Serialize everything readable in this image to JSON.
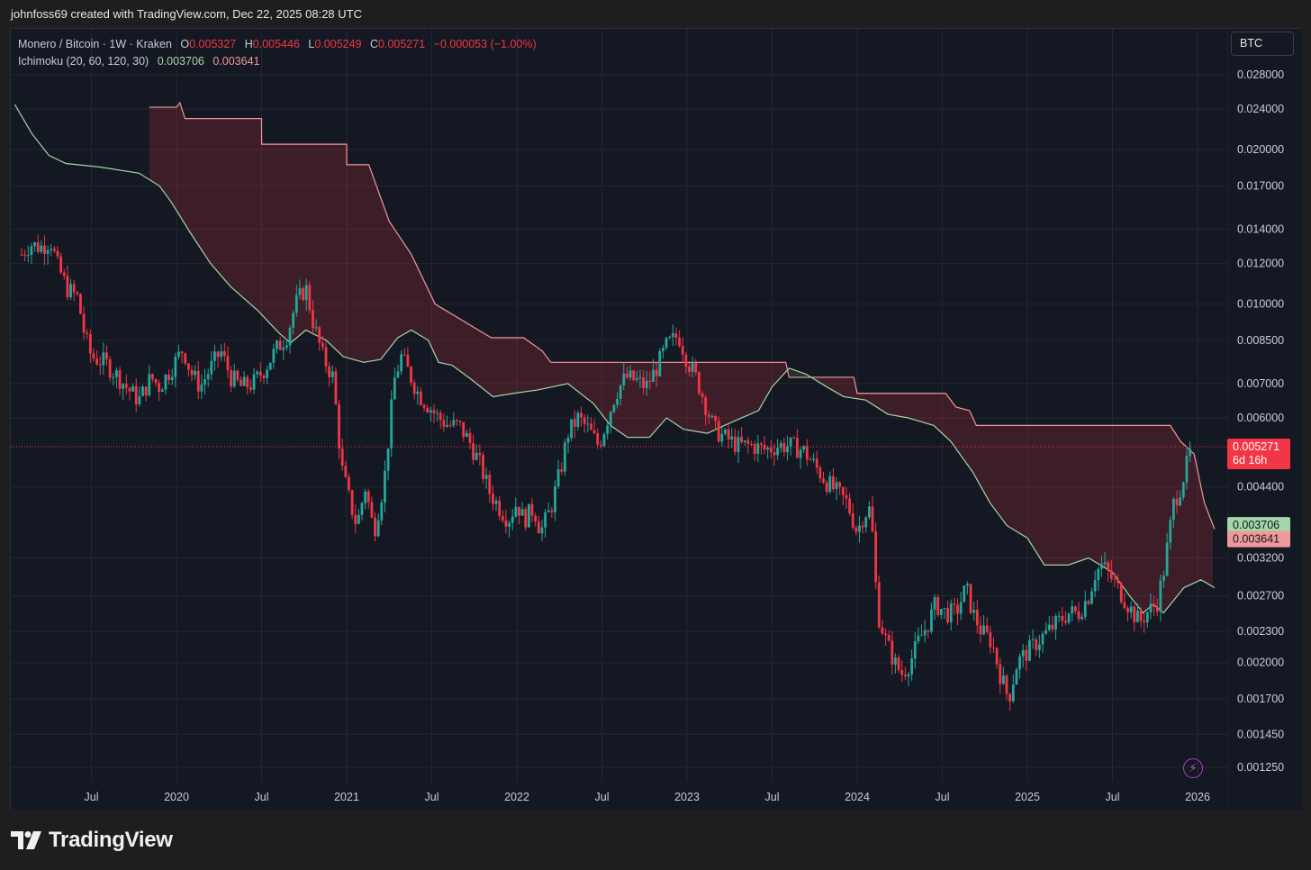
{
  "header": {
    "caption": "johnfoss69 created with TradingView.com, Dec 22, 2025 08:28 UTC"
  },
  "legend": {
    "symbol": "Monero / Bitcoin · 1W · Kraken",
    "o_label": "O",
    "o_value": "0.005327",
    "h_label": "H",
    "h_value": "0.005446",
    "l_label": "L",
    "l_value": "0.005249",
    "c_label": "C",
    "c_value": "0.005271",
    "change": "−0.000053 (−1.00%)",
    "indicator": "Ichimoku (20, 60, 120, 30)",
    "ind_value1": "0.003706",
    "ind_value2": "0.003641"
  },
  "toolbar": {
    "currency_label": "BTC"
  },
  "footer": {
    "brand": "TradingView"
  },
  "colors": {
    "up": "#26a69a",
    "down": "#f23645",
    "span_a": "#a5d6a7",
    "span_b": "#ef9a9a",
    "cloud_bear": "#f23645",
    "cloud_bull": "#4caf50",
    "background": "#141823",
    "grid": "#232733",
    "text": "#c9ccd3"
  },
  "chart_data": {
    "type": "candlestick",
    "interval": "1W",
    "price_scale": "log",
    "y_ticks": [
      "0.028000",
      "0.024000",
      "0.020000",
      "0.017000",
      "0.014000",
      "0.012000",
      "0.010000",
      "0.008500",
      "0.007000",
      "0.006000",
      "0.004400",
      "0.003200",
      "0.002700",
      "0.002300",
      "0.002000",
      "0.001700",
      "0.001450",
      "0.001250"
    ],
    "x_ticks": [
      {
        "label": "Jul",
        "t": 2019.5
      },
      {
        "label": "2020",
        "t": 2020.0
      },
      {
        "label": "Jul",
        "t": 2020.5
      },
      {
        "label": "2021",
        "t": 2021.0
      },
      {
        "label": "Jul",
        "t": 2021.5
      },
      {
        "label": "2022",
        "t": 2022.0
      },
      {
        "label": "Jul",
        "t": 2022.5
      },
      {
        "label": "2023",
        "t": 2023.0
      },
      {
        "label": "Jul",
        "t": 2023.5
      },
      {
        "label": "2024",
        "t": 2024.0
      },
      {
        "label": "Jul",
        "t": 2024.5
      },
      {
        "label": "2025",
        "t": 2025.0
      },
      {
        "label": "Jul",
        "t": 2025.5
      },
      {
        "label": "2026",
        "t": 2026.0
      }
    ],
    "last_price": {
      "value": 0.005271,
      "label": "0.005271",
      "countdown": "6d 16h"
    },
    "ichimoku_labels": [
      {
        "label": "0.003706",
        "value": 0.003706
      },
      {
        "label": "0.003641",
        "value": 0.003641
      }
    ],
    "price_path": [
      [
        2019.09,
        0.0125
      ],
      [
        2019.14,
        0.0131
      ],
      [
        2019.2,
        0.0129
      ],
      [
        2019.26,
        0.0133
      ],
      [
        2019.3,
        0.0119
      ],
      [
        2019.36,
        0.0107
      ],
      [
        2019.42,
        0.0103
      ],
      [
        2019.46,
        0.0087
      ],
      [
        2019.5,
        0.0079
      ],
      [
        2019.58,
        0.0077
      ],
      [
        2019.66,
        0.0072
      ],
      [
        2019.72,
        0.0068
      ],
      [
        2019.78,
        0.0065
      ],
      [
        2019.85,
        0.0072
      ],
      [
        2019.9,
        0.0069
      ],
      [
        2019.97,
        0.0075
      ],
      [
        2020.04,
        0.0082
      ],
      [
        2020.08,
        0.0074
      ],
      [
        2020.14,
        0.0069
      ],
      [
        2020.2,
        0.0075
      ],
      [
        2020.26,
        0.0081
      ],
      [
        2020.32,
        0.0072
      ],
      [
        2020.38,
        0.0069
      ],
      [
        2020.45,
        0.007
      ],
      [
        2020.52,
        0.0075
      ],
      [
        2020.58,
        0.0081
      ],
      [
        2020.65,
        0.0087
      ],
      [
        2020.7,
        0.01
      ],
      [
        2020.76,
        0.0108
      ],
      [
        2020.8,
        0.0093
      ],
      [
        2020.86,
        0.0079
      ],
      [
        2020.92,
        0.0072
      ],
      [
        2020.97,
        0.0048
      ],
      [
        2021.02,
        0.0041
      ],
      [
        2021.06,
        0.0037
      ],
      [
        2021.11,
        0.0044
      ],
      [
        2021.16,
        0.0036
      ],
      [
        2021.22,
        0.0045
      ],
      [
        2021.28,
        0.0071
      ],
      [
        2021.32,
        0.0079
      ],
      [
        2021.37,
        0.0073
      ],
      [
        2021.42,
        0.0067
      ],
      [
        2021.47,
        0.0064
      ],
      [
        2021.54,
        0.006
      ],
      [
        2021.6,
        0.0058
      ],
      [
        2021.66,
        0.0058
      ],
      [
        2021.72,
        0.0054
      ],
      [
        2021.78,
        0.0049
      ],
      [
        2021.84,
        0.0043
      ],
      [
        2021.9,
        0.004
      ],
      [
        2021.95,
        0.0038
      ],
      [
        2022.0,
        0.0041
      ],
      [
        2022.04,
        0.0038
      ],
      [
        2022.1,
        0.004
      ],
      [
        2022.14,
        0.0036
      ],
      [
        2022.2,
        0.004
      ],
      [
        2022.26,
        0.0048
      ],
      [
        2022.3,
        0.0056
      ],
      [
        2022.36,
        0.006
      ],
      [
        2022.42,
        0.0057
      ],
      [
        2022.48,
        0.0053
      ],
      [
        2022.52,
        0.0058
      ],
      [
        2022.58,
        0.0067
      ],
      [
        2022.64,
        0.0072
      ],
      [
        2022.7,
        0.0071
      ],
      [
        2022.76,
        0.0069
      ],
      [
        2022.82,
        0.0075
      ],
      [
        2022.88,
        0.0083
      ],
      [
        2022.95,
        0.0087
      ],
      [
        2023.0,
        0.0078
      ],
      [
        2023.06,
        0.0071
      ],
      [
        2023.1,
        0.0065
      ],
      [
        2023.16,
        0.0057
      ],
      [
        2023.22,
        0.0055
      ],
      [
        2023.3,
        0.0053
      ],
      [
        2023.38,
        0.0053
      ],
      [
        2023.46,
        0.0052
      ],
      [
        2023.54,
        0.0053
      ],
      [
        2023.6,
        0.0053
      ],
      [
        2023.68,
        0.0052
      ],
      [
        2023.74,
        0.0049
      ],
      [
        2023.82,
        0.0045
      ],
      [
        2023.88,
        0.0043
      ],
      [
        2023.94,
        0.0041
      ],
      [
        2024.0,
        0.0036
      ],
      [
        2024.04,
        0.0039
      ],
      [
        2024.08,
        0.004
      ],
      [
        2024.12,
        0.0025
      ],
      [
        2024.17,
        0.0022
      ],
      [
        2024.22,
        0.002
      ],
      [
        2024.26,
        0.0019
      ],
      [
        2024.31,
        0.002
      ],
      [
        2024.36,
        0.0022
      ],
      [
        2024.42,
        0.0024
      ],
      [
        2024.46,
        0.0026
      ],
      [
        2024.52,
        0.0025
      ],
      [
        2024.58,
        0.0025
      ],
      [
        2024.64,
        0.0028
      ],
      [
        2024.68,
        0.0025
      ],
      [
        2024.73,
        0.0023
      ],
      [
        2024.79,
        0.0022
      ],
      [
        2024.84,
        0.0019
      ],
      [
        2024.89,
        0.0017
      ],
      [
        2024.94,
        0.002
      ],
      [
        2025.0,
        0.0021
      ],
      [
        2025.06,
        0.0022
      ],
      [
        2025.12,
        0.0023
      ],
      [
        2025.18,
        0.0024
      ],
      [
        2025.24,
        0.0025
      ],
      [
        2025.3,
        0.0025
      ],
      [
        2025.36,
        0.0027
      ],
      [
        2025.4,
        0.003
      ],
      [
        2025.44,
        0.0031
      ],
      [
        2025.5,
        0.0029
      ],
      [
        2025.56,
        0.0027
      ],
      [
        2025.62,
        0.0025
      ],
      [
        2025.66,
        0.0024
      ],
      [
        2025.7,
        0.0025
      ],
      [
        2025.76,
        0.0026
      ],
      [
        2025.8,
        0.003
      ],
      [
        2025.86,
        0.0041
      ],
      [
        2025.9,
        0.0044
      ],
      [
        2025.94,
        0.0049
      ],
      [
        2025.97,
        0.00533
      ]
    ],
    "span_a_path": [
      [
        2019.05,
        0.0245
      ],
      [
        2019.15,
        0.0215
      ],
      [
        2019.25,
        0.0195
      ],
      [
        2019.35,
        0.0188
      ],
      [
        2019.55,
        0.0185
      ],
      [
        2019.78,
        0.018
      ],
      [
        2019.9,
        0.017
      ],
      [
        2019.97,
        0.0158
      ],
      [
        2020.08,
        0.0138
      ],
      [
        2020.2,
        0.012
      ],
      [
        2020.32,
        0.0108
      ],
      [
        2020.48,
        0.0097
      ],
      [
        2020.6,
        0.0088
      ],
      [
        2020.67,
        0.0084
      ],
      [
        2020.76,
        0.0089
      ],
      [
        2020.88,
        0.0085
      ],
      [
        2020.98,
        0.0079
      ],
      [
        2021.1,
        0.0077
      ],
      [
        2021.2,
        0.0078
      ],
      [
        2021.3,
        0.0086
      ],
      [
        2021.38,
        0.0089
      ],
      [
        2021.48,
        0.0085
      ],
      [
        2021.54,
        0.0077
      ],
      [
        2021.62,
        0.0076
      ],
      [
        2021.74,
        0.0071
      ],
      [
        2021.86,
        0.0066
      ],
      [
        2021.98,
        0.0067
      ],
      [
        2022.12,
        0.0068
      ],
      [
        2022.3,
        0.007
      ],
      [
        2022.45,
        0.0064
      ],
      [
        2022.55,
        0.0058
      ],
      [
        2022.65,
        0.0055
      ],
      [
        2022.78,
        0.0055
      ],
      [
        2022.88,
        0.006
      ],
      [
        2022.98,
        0.0057
      ],
      [
        2023.12,
        0.0056
      ],
      [
        2023.22,
        0.0058
      ],
      [
        2023.32,
        0.006
      ],
      [
        2023.42,
        0.0062
      ],
      [
        2023.5,
        0.0069
      ],
      [
        2023.6,
        0.0075
      ],
      [
        2023.7,
        0.0073
      ],
      [
        2023.82,
        0.0069
      ],
      [
        2023.92,
        0.0066
      ],
      [
        2024.05,
        0.0065
      ],
      [
        2024.18,
        0.0061
      ],
      [
        2024.3,
        0.006
      ],
      [
        2024.45,
        0.0058
      ],
      [
        2024.55,
        0.0054
      ],
      [
        2024.68,
        0.0047
      ],
      [
        2024.78,
        0.0041
      ],
      [
        2024.88,
        0.0037
      ],
      [
        2025.0,
        0.0035
      ],
      [
        2025.1,
        0.0031
      ],
      [
        2025.24,
        0.0031
      ],
      [
        2025.36,
        0.0032
      ],
      [
        2025.5,
        0.003
      ],
      [
        2025.6,
        0.0027
      ],
      [
        2025.68,
        0.0025
      ],
      [
        2025.74,
        0.0026
      ],
      [
        2025.8,
        0.0025
      ],
      [
        2025.92,
        0.0028
      ],
      [
        2026.02,
        0.0029
      ],
      [
        2026.1,
        0.0028
      ]
    ],
    "span_b_path": [
      [
        2019.84,
        0.0242
      ],
      [
        2020.0,
        0.0242
      ],
      [
        2020.02,
        0.0247
      ],
      [
        2020.05,
        0.023
      ],
      [
        2020.5,
        0.023
      ],
      [
        2020.5,
        0.0205
      ],
      [
        2021.0,
        0.0205
      ],
      [
        2021.0,
        0.0187
      ],
      [
        2021.13,
        0.0187
      ],
      [
        2021.25,
        0.0145
      ],
      [
        2021.38,
        0.0125
      ],
      [
        2021.52,
        0.01
      ],
      [
        2021.75,
        0.009
      ],
      [
        2021.85,
        0.0086
      ],
      [
        2022.04,
        0.0086
      ],
      [
        2022.15,
        0.0081
      ],
      [
        2022.2,
        0.0077
      ],
      [
        2023.5,
        0.0077
      ],
      [
        2023.58,
        0.0077
      ],
      [
        2023.6,
        0.0072
      ],
      [
        2023.98,
        0.0072
      ],
      [
        2024.0,
        0.0067
      ],
      [
        2024.52,
        0.0067
      ],
      [
        2024.58,
        0.0063
      ],
      [
        2024.66,
        0.0062
      ],
      [
        2024.7,
        0.0058
      ],
      [
        2025.84,
        0.0058
      ],
      [
        2025.9,
        0.0054
      ],
      [
        2025.98,
        0.0051
      ],
      [
        2026.04,
        0.0041
      ],
      [
        2026.1,
        0.00364
      ]
    ]
  }
}
